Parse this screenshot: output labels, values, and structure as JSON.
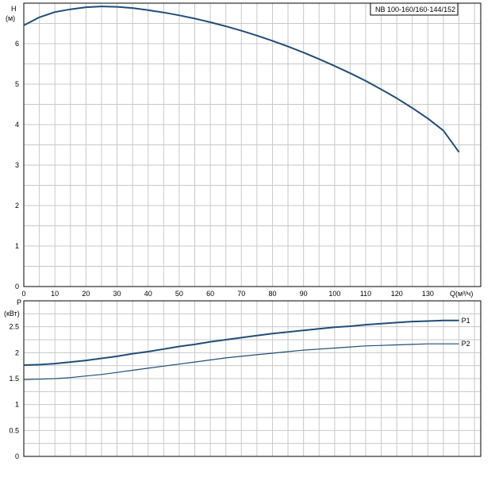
{
  "chart_data": [
    {
      "type": "line",
      "legend": "NB 100-160/160-144/152",
      "ylabel_top": "H",
      "ylabel_unit": "(м)",
      "xlabel": "Q(м³/ч)",
      "xlim": [
        0,
        147
      ],
      "ylim": [
        0,
        7
      ],
      "xticks": [
        0,
        10,
        20,
        30,
        40,
        50,
        60,
        70,
        80,
        90,
        100,
        110,
        120,
        130
      ],
      "yticks": [
        0,
        1,
        2,
        3,
        4,
        5,
        6
      ],
      "grid": true,
      "color": "#1f4e79",
      "series": [
        {
          "name": "",
          "x": [
            0,
            5,
            10,
            15,
            20,
            25,
            30,
            35,
            40,
            45,
            50,
            55,
            60,
            65,
            70,
            75,
            80,
            85,
            90,
            95,
            100,
            105,
            110,
            115,
            120,
            125,
            130,
            135,
            140
          ],
          "y": [
            6.45,
            6.65,
            6.78,
            6.85,
            6.9,
            6.92,
            6.91,
            6.88,
            6.83,
            6.77,
            6.7,
            6.62,
            6.53,
            6.43,
            6.32,
            6.2,
            6.07,
            5.93,
            5.78,
            5.62,
            5.45,
            5.27,
            5.08,
            4.87,
            4.65,
            4.41,
            4.15,
            3.85,
            3.32
          ]
        }
      ]
    },
    {
      "type": "line",
      "ylabel_top": "P",
      "ylabel_unit": "(кВт)",
      "xlim": [
        0,
        147
      ],
      "ylim": [
        0,
        3.0
      ],
      "yticks": [
        0,
        0.5,
        1,
        1.5,
        2,
        2.5
      ],
      "ytick_labels": [
        "0",
        "0.5",
        "1",
        "1.5",
        "2",
        "2.5"
      ],
      "grid": true,
      "color": "#1f4e79",
      "series": [
        {
          "name": "P1",
          "x": [
            0,
            5,
            10,
            15,
            20,
            25,
            30,
            35,
            40,
            45,
            50,
            55,
            60,
            65,
            70,
            75,
            80,
            85,
            90,
            95,
            100,
            105,
            110,
            115,
            120,
            125,
            130,
            135,
            140
          ],
          "y": [
            1.76,
            1.77,
            1.79,
            1.82,
            1.85,
            1.89,
            1.93,
            1.98,
            2.02,
            2.07,
            2.12,
            2.16,
            2.21,
            2.25,
            2.29,
            2.33,
            2.37,
            2.4,
            2.43,
            2.46,
            2.49,
            2.51,
            2.54,
            2.56,
            2.58,
            2.6,
            2.61,
            2.62,
            2.62
          ]
        },
        {
          "name": "P2",
          "x": [
            0,
            5,
            10,
            15,
            20,
            25,
            30,
            35,
            40,
            45,
            50,
            55,
            60,
            65,
            70,
            75,
            80,
            85,
            90,
            95,
            100,
            105,
            110,
            115,
            120,
            125,
            130,
            135,
            140
          ],
          "y": [
            1.48,
            1.49,
            1.5,
            1.52,
            1.55,
            1.58,
            1.62,
            1.66,
            1.7,
            1.74,
            1.78,
            1.82,
            1.86,
            1.9,
            1.93,
            1.96,
            1.99,
            2.02,
            2.05,
            2.07,
            2.09,
            2.11,
            2.13,
            2.14,
            2.15,
            2.16,
            2.17,
            2.17,
            2.17
          ]
        }
      ]
    }
  ]
}
